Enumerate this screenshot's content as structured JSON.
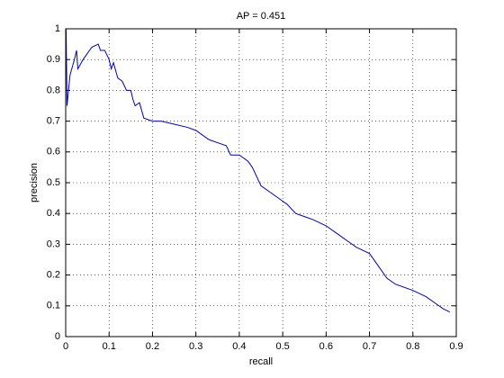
{
  "chart_data": {
    "type": "line",
    "title": "AP = 0.451",
    "x_label": "recall",
    "y_label": "precision",
    "x": [
      0.001,
      0.003,
      0.01,
      0.02,
      0.025,
      0.028,
      0.04,
      0.06,
      0.075,
      0.08,
      0.09,
      0.1,
      0.105,
      0.11,
      0.12,
      0.13,
      0.14,
      0.15,
      0.155,
      0.16,
      0.17,
      0.18,
      0.2,
      0.22,
      0.25,
      0.28,
      0.3,
      0.31,
      0.33,
      0.35,
      0.37,
      0.38,
      0.4,
      0.42,
      0.43,
      0.44,
      0.45,
      0.47,
      0.5,
      0.51,
      0.53,
      0.55,
      0.57,
      0.6,
      0.62,
      0.65,
      0.67,
      0.7,
      0.72,
      0.74,
      0.76,
      0.8,
      0.83,
      0.85,
      0.87,
      0.885
    ],
    "series": [
      {
        "color": "#0000b4",
        "values": [
          1.0,
          0.75,
          0.85,
          0.9,
          0.93,
          0.87,
          0.9,
          0.94,
          0.95,
          0.93,
          0.93,
          0.9,
          0.87,
          0.89,
          0.84,
          0.83,
          0.8,
          0.8,
          0.77,
          0.75,
          0.76,
          0.71,
          0.7,
          0.7,
          0.69,
          0.68,
          0.67,
          0.66,
          0.64,
          0.63,
          0.62,
          0.59,
          0.59,
          0.57,
          0.55,
          0.52,
          0.49,
          0.47,
          0.44,
          0.43,
          0.4,
          0.39,
          0.38,
          0.36,
          0.34,
          0.31,
          0.29,
          0.27,
          0.23,
          0.19,
          0.17,
          0.15,
          0.13,
          0.11,
          0.09,
          0.08
        ]
      }
    ],
    "xlim": [
      0,
      0.9
    ],
    "xticks": [
      0,
      0.1,
      0.2,
      0.3,
      0.4,
      0.5,
      0.6,
      0.7,
      0.8,
      0.9
    ],
    "ylim": [
      0,
      1
    ],
    "yticks": [
      0,
      0.1,
      0.2,
      0.3,
      0.4,
      0.5,
      0.6,
      0.7,
      0.8,
      0.9,
      1
    ],
    "grid": true
  }
}
